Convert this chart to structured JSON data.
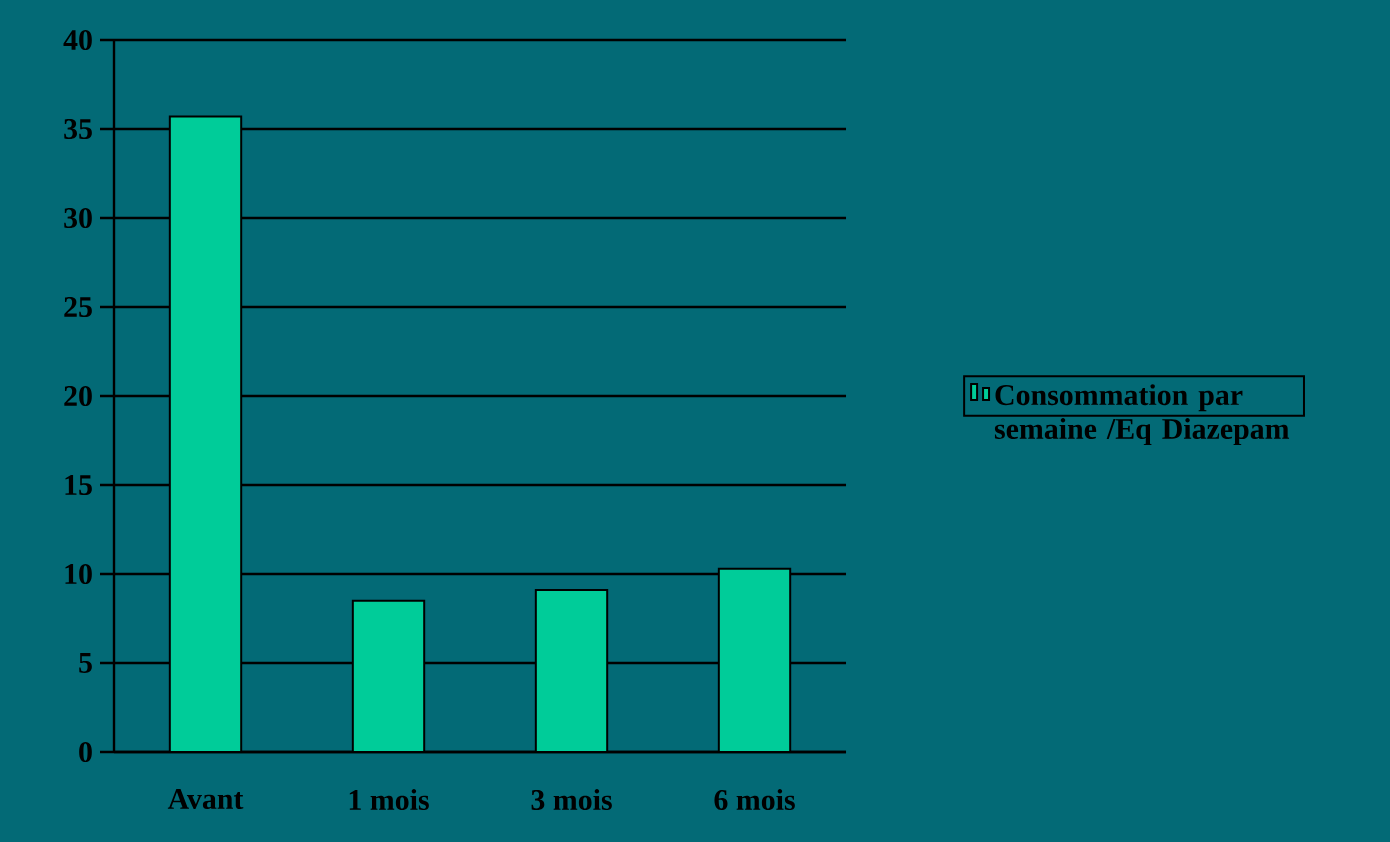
{
  "chart_data": {
    "type": "bar",
    "categories": [
      "Avant",
      "1 mois",
      "3 mois",
      "6 mois"
    ],
    "series": [
      {
        "name": "Consommation par semaine /Eq Diazepam",
        "color": "#00cc99",
        "values": [
          35.7,
          8.5,
          9.1,
          10.3
        ]
      }
    ],
    "ylim": [
      0,
      40
    ],
    "yticks": [
      0,
      5,
      10,
      15,
      20,
      25,
      30,
      35,
      40
    ],
    "grid": "y",
    "legend": "right"
  }
}
